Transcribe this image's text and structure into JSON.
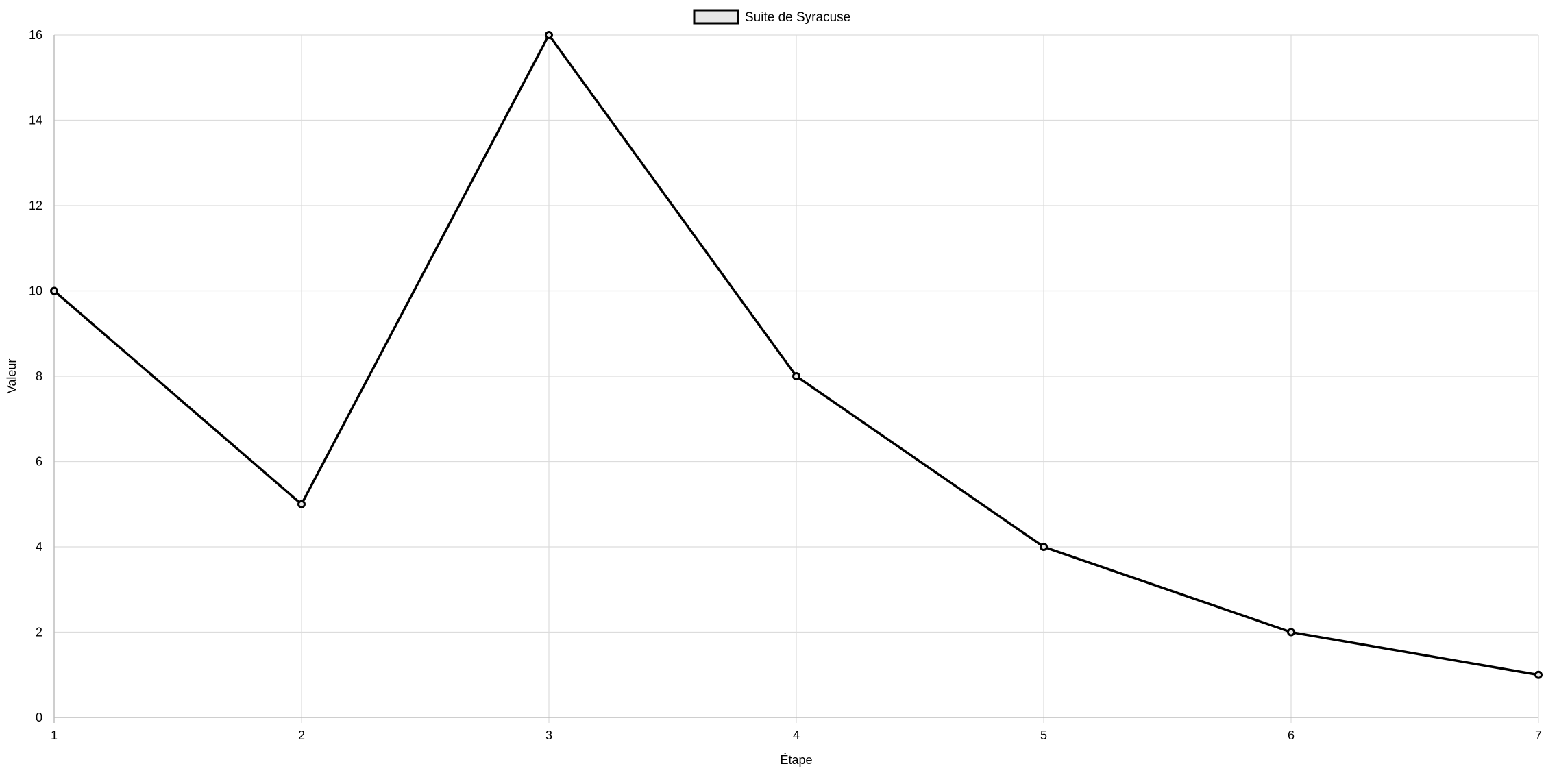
{
  "chart_data": {
    "type": "line",
    "title": "",
    "xlabel": "Étape",
    "ylabel": "Valeur",
    "x": [
      1,
      2,
      3,
      4,
      5,
      6,
      7
    ],
    "xlim": [
      1,
      7
    ],
    "ylim": [
      0,
      16
    ],
    "yticks": [
      0,
      2,
      4,
      6,
      8,
      10,
      12,
      14,
      16
    ],
    "grid": true,
    "legend_position": "top-center",
    "series": [
      {
        "name": "Suite de Syracuse",
        "values": [
          10,
          5,
          16,
          8,
          4,
          2,
          1
        ],
        "color": "#000000",
        "fill": "#e6e6e6"
      }
    ]
  }
}
